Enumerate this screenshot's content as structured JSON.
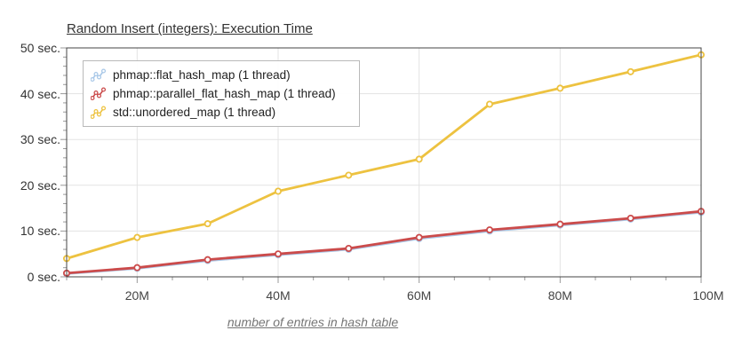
{
  "chart_data": {
    "type": "line",
    "title": "Random Insert (integers): Execution Time",
    "xlabel": "number of entries in hash table",
    "ylabel": "",
    "x": [
      10,
      20,
      30,
      40,
      50,
      60,
      70,
      80,
      90,
      100
    ],
    "x_unit": "millions of entries",
    "xlim": [
      10,
      100
    ],
    "ylim": [
      0,
      50
    ],
    "grid": true,
    "legend_position": "top-left",
    "x_tick_values": [
      20,
      40,
      60,
      80,
      100
    ],
    "x_tick_labels": [
      "20M",
      "40M",
      "60M",
      "80M",
      "100M"
    ],
    "x_minor_tick_step": 5,
    "y_tick_values": [
      0,
      10,
      20,
      30,
      40,
      50
    ],
    "y_tick_labels": [
      "0 sec.",
      "10 sec.",
      "20 sec.",
      "30 sec.",
      "40 sec.",
      "50 sec."
    ],
    "y_minor_tick_step": 2,
    "series": [
      {
        "name": "phmap::flat_hash_map (1 thread)",
        "color": "#A9C8E8",
        "values": [
          0.7,
          1.85,
          3.55,
          4.8,
          6.0,
          8.35,
          10.0,
          11.3,
          12.6,
          14.1
        ]
      },
      {
        "name": "phmap::parallel_flat_hash_map (1 thread)",
        "color": "#CB4B4B",
        "values": [
          0.8,
          2.0,
          3.75,
          5.0,
          6.2,
          8.6,
          10.25,
          11.5,
          12.8,
          14.3
        ]
      },
      {
        "name": "std::unordered_map (1 thread)",
        "color": "#EDC240",
        "values": [
          4.0,
          8.6,
          11.6,
          18.7,
          22.2,
          25.7,
          37.7,
          41.2,
          44.8,
          48.5
        ]
      }
    ],
    "colors": {
      "frame": "#444444",
      "gridline": "#e3e3e3",
      "tick": "#999999",
      "title_text": "#333333",
      "axis_text": "#444444",
      "caption_text": "#757575",
      "background": "#ffffff"
    }
  }
}
